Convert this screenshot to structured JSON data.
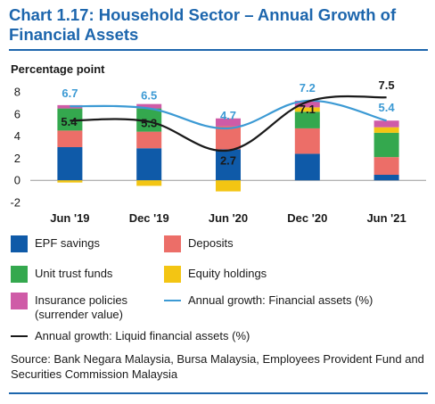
{
  "title": "Chart 1.17: Household Sector – Annual Growth of Financial Assets",
  "source": "Source: Bank Negara Malaysia, Bursa Malaysia, Employees Provident Fund and Securities Commission Malaysia",
  "colors": {
    "epf": "#0f5aa8",
    "deposits": "#ec6e68",
    "unit_trust": "#34a84e",
    "equity": "#f3c513",
    "insurance": "#cf5ba7",
    "financial_line": "#3c9ad4",
    "liquid_line": "#1a1a1a",
    "title": "#1d66ad"
  },
  "legend": {
    "epf": "EPF savings",
    "deposits": "Deposits",
    "unit_trust": "Unit trust funds",
    "equity": "Equity holdings",
    "insurance": "Insurance policies (surrender value)",
    "financial_line": "Annual growth: Financial assets (%)",
    "liquid_line": "Annual growth: Liquid financial assets (%)"
  },
  "chart_data": {
    "type": "bar",
    "stacked": true,
    "title": "Chart 1.17: Household Sector – Annual Growth of Financial Assets",
    "ylabel": "Percentage point",
    "ylim": [
      -2,
      8
    ],
    "yticks": [
      -2,
      0,
      2,
      4,
      6,
      8
    ],
    "categories": [
      "Jun '19",
      "Dec '19",
      "Jun '20",
      "Dec '20",
      "Jun '21"
    ],
    "series": [
      {
        "name": "EPF savings",
        "values": [
          3.0,
          2.9,
          2.8,
          2.4,
          0.5
        ]
      },
      {
        "name": "Deposits",
        "values": [
          1.5,
          1.5,
          2.1,
          2.3,
          1.6
        ]
      },
      {
        "name": "Unit trust funds",
        "values": [
          2.0,
          2.1,
          0.0,
          1.5,
          2.2
        ]
      },
      {
        "name": "Equity holdings",
        "values": [
          -0.2,
          -0.5,
          -1.0,
          0.4,
          0.5
        ]
      },
      {
        "name": "Insurance policies (surrender value)",
        "values": [
          0.3,
          0.4,
          0.7,
          0.6,
          0.6
        ]
      }
    ],
    "lines": [
      {
        "name": "Annual growth: Financial assets (%)",
        "values": [
          6.7,
          6.5,
          4.7,
          7.2,
          5.4
        ],
        "labels": [
          "6.7",
          "6.5",
          "4.7",
          "7.2",
          "5.4"
        ]
      },
      {
        "name": "Annual growth: Liquid financial assets (%)",
        "values": [
          5.4,
          5.3,
          2.7,
          7.1,
          7.5
        ],
        "labels": [
          "5.4",
          "5.3",
          "2.7",
          "7.1",
          "7.5"
        ]
      }
    ]
  }
}
